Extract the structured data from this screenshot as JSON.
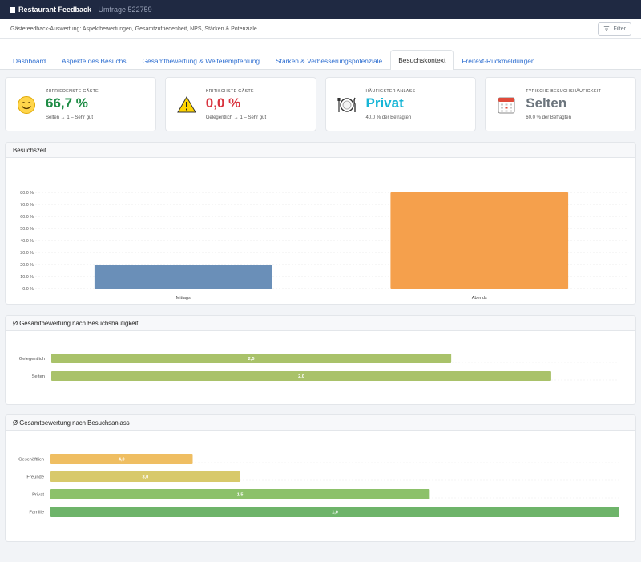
{
  "app": {
    "title": "Restaurant Feedback",
    "subtitle": "· Umfrage 522759"
  },
  "subheader": {
    "description": "Gästefeedback-Auswertung: Aspektbewertungen, Gesamtzufriedenheit, NPS, Stärken & Potenziale.",
    "filter_label": "Filter"
  },
  "tabs": [
    {
      "label": "Dashboard"
    },
    {
      "label": "Aspekte des Besuchs"
    },
    {
      "label": "Gesamtbewertung & Weiterempfehlung"
    },
    {
      "label": "Stärken & Verbesserungspotenziale"
    },
    {
      "label": "Besuchskontext",
      "active": true
    },
    {
      "label": "Freitext-Rückmeldungen"
    }
  ],
  "kpis": [
    {
      "label": "Zufriedenste Gäste",
      "value": "66,7 %",
      "note": "Selten → 1 – Sehr gut",
      "icon": "smiley-icon",
      "color": "#1e8c45"
    },
    {
      "label": "Kritischste Gäste",
      "value": "0,0 %",
      "note": "Gelegentlich → 1 – Sehr gut",
      "icon": "warning-icon",
      "color": "#d9343f"
    },
    {
      "label": "Häufigster Anlass",
      "value": "Privat",
      "note": "40,0 % der Befragten",
      "icon": "plate-cutlery-icon",
      "color": "#17b5d6"
    },
    {
      "label": "Typische Besuchshäufigkeit",
      "value": "Selten",
      "note": "60,0 % der Befragten",
      "icon": "calendar-icon",
      "color": "#6c757d"
    }
  ],
  "charts": {
    "besuchszeit_title": "Besuchszeit",
    "haeufigkeit_title": "Ø Gesamtbewertung nach Besuchshäufigkeit",
    "anlass_title": "Ø Gesamtbewertung nach Besuchsanlass"
  },
  "chart_data": [
    {
      "type": "bar",
      "title": "Besuchszeit",
      "categories": [
        "Mittags",
        "Abends"
      ],
      "values": [
        20.0,
        80.0
      ],
      "colors": [
        "#6a8fb8",
        "#f5a04c"
      ],
      "ylim": [
        0,
        80
      ],
      "yticks": [
        "0.0 %",
        "10.0 %",
        "20.0 %",
        "30.0 %",
        "40.0 %",
        "50.0 %",
        "60.0 %",
        "70.0 %",
        "80.0 %"
      ],
      "grid": true
    },
    {
      "type": "bar",
      "orientation": "horizontal",
      "title": "Ø Gesamtbewertung nach Besuchshäufigkeit",
      "categories": [
        "Gelegentlich",
        "Selten"
      ],
      "values": [
        2.5,
        2.0
      ],
      "labels": [
        "2,5",
        "2,0"
      ],
      "scale_max": 1.0,
      "color": "#a9c26a"
    },
    {
      "type": "bar",
      "orientation": "horizontal",
      "title": "Ø Gesamtbewertung nach Besuchsanlass",
      "categories": [
        "Geschäftlich",
        "Freunde",
        "Privat",
        "Familie"
      ],
      "values": [
        4.0,
        3.0,
        1.5,
        1.0
      ],
      "labels": [
        "4,0",
        "3,0",
        "1,5",
        "1,0"
      ],
      "colors": [
        "#efbe62",
        "#d8c96b",
        "#8cc16a",
        "#6eb46a"
      ]
    }
  ]
}
